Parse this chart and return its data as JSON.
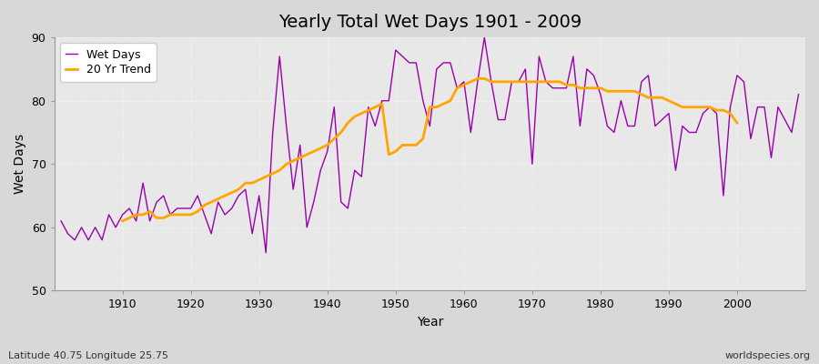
{
  "title": "Yearly Total Wet Days 1901 - 2009",
  "xlabel": "Year",
  "ylabel": "Wet Days",
  "subtitle": "Latitude 40.75 Longitude 25.75",
  "watermark": "worldspecies.org",
  "fig_color": "#d8d8d8",
  "plot_bg_color": "#e8e8e8",
  "wet_days_color": "#9900aa",
  "trend_color": "#ffa500",
  "ylim": [
    50,
    90
  ],
  "xlim": [
    1900,
    2010
  ],
  "years": [
    1901,
    1902,
    1903,
    1904,
    1905,
    1906,
    1907,
    1908,
    1909,
    1910,
    1911,
    1912,
    1913,
    1914,
    1915,
    1916,
    1917,
    1918,
    1919,
    1920,
    1921,
    1922,
    1923,
    1924,
    1925,
    1926,
    1927,
    1928,
    1929,
    1930,
    1931,
    1932,
    1933,
    1934,
    1935,
    1936,
    1937,
    1938,
    1939,
    1940,
    1941,
    1942,
    1943,
    1944,
    1945,
    1946,
    1947,
    1948,
    1949,
    1950,
    1951,
    1952,
    1953,
    1954,
    1955,
    1956,
    1957,
    1958,
    1959,
    1960,
    1961,
    1962,
    1963,
    1964,
    1965,
    1966,
    1967,
    1968,
    1969,
    1970,
    1971,
    1972,
    1973,
    1974,
    1975,
    1976,
    1977,
    1978,
    1979,
    1980,
    1981,
    1982,
    1983,
    1984,
    1985,
    1986,
    1987,
    1988,
    1989,
    1990,
    1991,
    1992,
    1993,
    1994,
    1995,
    1996,
    1997,
    1998,
    1999,
    2000,
    2001,
    2002,
    2003,
    2004,
    2005,
    2006,
    2007,
    2008,
    2009
  ],
  "wet_days": [
    61,
    59,
    58,
    60,
    58,
    60,
    58,
    62,
    60,
    62,
    63,
    61,
    67,
    61,
    64,
    65,
    62,
    63,
    63,
    63,
    65,
    62,
    59,
    64,
    62,
    63,
    65,
    66,
    59,
    65,
    56,
    75,
    87,
    76,
    66,
    73,
    60,
    64,
    69,
    72,
    79,
    64,
    63,
    69,
    68,
    79,
    76,
    80,
    80,
    88,
    87,
    86,
    86,
    80,
    76,
    85,
    86,
    86,
    82,
    83,
    75,
    83,
    90,
    83,
    77,
    77,
    83,
    83,
    85,
    70,
    87,
    83,
    82,
    82,
    82,
    87,
    76,
    85,
    84,
    81,
    76,
    75,
    80,
    76,
    76,
    83,
    84,
    76,
    77,
    78,
    69,
    76,
    75,
    75,
    78,
    79,
    78,
    65,
    79,
    84,
    83,
    74,
    79,
    79,
    71,
    79,
    77,
    75,
    81
  ],
  "trend_years": [
    1910,
    1911,
    1912,
    1913,
    1914,
    1915,
    1916,
    1917,
    1918,
    1919,
    1920,
    1921,
    1922,
    1923,
    1924,
    1925,
    1926,
    1927,
    1928,
    1929,
    1930,
    1931,
    1932,
    1933,
    1934,
    1935,
    1936,
    1937,
    1938,
    1939,
    1940,
    1941,
    1942,
    1943,
    1944,
    1945,
    1946,
    1947,
    1948,
    1949,
    1950,
    1951,
    1952,
    1953,
    1954,
    1955,
    1956,
    1957,
    1958,
    1959,
    1960,
    1961,
    1962,
    1963,
    1964,
    1965,
    1966,
    1967,
    1968,
    1969,
    1970,
    1971,
    1972,
    1973,
    1974,
    1975,
    1976,
    1977,
    1978,
    1979,
    1980,
    1981,
    1982,
    1983,
    1984,
    1985,
    1986,
    1987,
    1988,
    1989,
    1990,
    1991,
    1992,
    1993,
    1994,
    1995,
    1996,
    1997,
    1998,
    1999,
    2000
  ],
  "trend_values": [
    61.0,
    61.5,
    62.0,
    62.0,
    62.5,
    61.5,
    61.5,
    62.0,
    62.0,
    62.0,
    62.0,
    62.5,
    63.5,
    64.0,
    64.5,
    65.0,
    65.5,
    66.0,
    67.0,
    67.0,
    67.5,
    68.0,
    68.5,
    69.0,
    70.0,
    70.5,
    71.0,
    71.5,
    72.0,
    72.5,
    73.0,
    74.0,
    75.0,
    76.5,
    77.5,
    78.0,
    78.5,
    79.0,
    79.5,
    71.5,
    72.0,
    73.0,
    73.0,
    73.0,
    74.0,
    79.0,
    79.0,
    79.5,
    80.0,
    82.0,
    82.5,
    83.0,
    83.5,
    83.5,
    83.0,
    83.0,
    83.0,
    83.0,
    83.0,
    83.0,
    83.0,
    83.0,
    83.0,
    83.0,
    83.0,
    82.5,
    82.5,
    82.0,
    82.0,
    82.0,
    82.0,
    81.5,
    81.5,
    81.5,
    81.5,
    81.5,
    81.0,
    80.5,
    80.5,
    80.5,
    80.0,
    79.5,
    79.0,
    79.0,
    79.0,
    79.0,
    79.0,
    78.5,
    78.5,
    78.0,
    76.5
  ]
}
